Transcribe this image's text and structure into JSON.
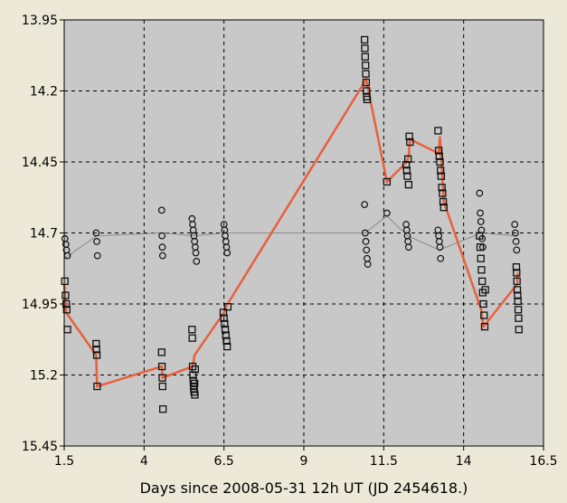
{
  "chart_data": {
    "type": "scatter",
    "title": "",
    "xlabel": "Days since 2008-05-31 12h UT (JD 2454618.)",
    "ylabel": "",
    "xlim": [
      1.5,
      16.5
    ],
    "ylim": [
      15.45,
      13.95
    ],
    "y_inverted": true,
    "grid": true,
    "x_ticks": [
      "1.5",
      "4",
      "6.5",
      "9",
      "11.5",
      "14",
      "16.5"
    ],
    "y_ticks": [
      "13.95",
      "14.2",
      "14.45",
      "14.7",
      "14.95",
      "15.2",
      "15.45"
    ],
    "colors": {
      "plot_background": "#c8c8c8",
      "window_background": "#ece9d8",
      "variable_line": "#e8603c",
      "comparison_line": "#8a8a8a",
      "marker_edge": "#111111"
    },
    "series": [
      {
        "marker": "square",
        "line": "#e8603c",
        "x": [
          1.52,
          1.54,
          1.56,
          1.58,
          1.6,
          2.5,
          2.51,
          2.52,
          2.53,
          4.55,
          4.56,
          4.57,
          4.58,
          4.59,
          5.5,
          5.51,
          5.52,
          5.53,
          5.54,
          5.55,
          5.56,
          5.57,
          5.58,
          5.59,
          5.6,
          6.48,
          6.5,
          6.52,
          6.54,
          6.56,
          6.58,
          6.6,
          6.62,
          10.9,
          10.91,
          10.92,
          10.93,
          10.94,
          10.95,
          10.96,
          10.97,
          10.98,
          11.6,
          12.2,
          12.22,
          12.24,
          12.26,
          12.28,
          12.3,
          12.32,
          13.2,
          13.22,
          13.24,
          13.26,
          13.28,
          13.3,
          13.32,
          13.34,
          13.36,
          13.38,
          14.5,
          14.52,
          14.54,
          14.56,
          14.58,
          14.6,
          14.62,
          14.64,
          14.66,
          14.68,
          15.65,
          15.66,
          15.67,
          15.68,
          15.69,
          15.7,
          15.71,
          15.72,
          15.73
        ],
        "y": [
          14.87,
          14.92,
          14.95,
          14.97,
          15.04,
          15.09,
          15.11,
          15.13,
          15.24,
          15.12,
          15.17,
          15.21,
          15.24,
          15.32,
          15.04,
          15.07,
          15.17,
          15.2,
          15.22,
          15.24,
          15.25,
          15.26,
          15.23,
          15.27,
          15.18,
          14.98,
          15.0,
          15.02,
          15.04,
          15.06,
          15.08,
          15.1,
          14.96,
          14.02,
          14.05,
          14.08,
          14.11,
          14.14,
          14.17,
          14.2,
          14.22,
          14.23,
          14.52,
          14.46,
          14.48,
          14.5,
          14.44,
          14.53,
          14.36,
          14.38,
          14.34,
          14.41,
          14.43,
          14.45,
          14.48,
          14.5,
          14.54,
          14.56,
          14.59,
          14.61,
          14.71,
          14.75,
          14.79,
          14.83,
          14.87,
          14.91,
          14.95,
          14.99,
          15.03,
          14.9,
          14.82,
          14.84,
          14.87,
          14.9,
          14.92,
          14.94,
          14.97,
          15.0,
          15.04
        ],
        "line_x": [
          1.5,
          1.56,
          2.5,
          2.53,
          4.56,
          4.58,
          5.52,
          5.55,
          5.58,
          6.5,
          6.56,
          10.95,
          11.6,
          12.22,
          12.28,
          12.32,
          13.22,
          13.26,
          13.38,
          14.55,
          14.62,
          15.68,
          15.7
        ],
        "line_y": [
          14.88,
          14.98,
          15.13,
          15.24,
          15.17,
          15.21,
          15.17,
          15.15,
          15.13,
          14.98,
          14.96,
          14.16,
          14.52,
          14.45,
          14.43,
          14.37,
          14.42,
          14.36,
          14.59,
          14.97,
          15.03,
          14.88,
          14.84
        ]
      },
      {
        "marker": "circle",
        "line": "#8a8a8a",
        "x": [
          1.52,
          1.55,
          1.57,
          1.6,
          2.5,
          2.52,
          2.54,
          4.55,
          4.56,
          4.57,
          4.58,
          5.5,
          5.52,
          5.54,
          5.56,
          5.58,
          5.6,
          5.62,
          5.64,
          6.5,
          6.52,
          6.54,
          6.56,
          6.58,
          6.6,
          10.9,
          10.92,
          10.94,
          10.96,
          10.98,
          11.0,
          11.6,
          12.2,
          12.22,
          12.24,
          12.26,
          12.28,
          13.2,
          13.22,
          13.24,
          13.26,
          13.28,
          14.5,
          14.52,
          14.54,
          14.56,
          14.58,
          14.6,
          15.6,
          15.62,
          15.64,
          15.66
        ],
        "y": [
          14.72,
          14.74,
          14.76,
          14.78,
          14.7,
          14.73,
          14.78,
          14.62,
          14.71,
          14.75,
          14.78,
          14.65,
          14.67,
          14.69,
          14.71,
          14.73,
          14.75,
          14.77,
          14.8,
          14.67,
          14.69,
          14.71,
          14.73,
          14.75,
          14.77,
          14.6,
          14.7,
          14.73,
          14.76,
          14.79,
          14.81,
          14.63,
          14.67,
          14.69,
          14.71,
          14.73,
          14.75,
          14.69,
          14.71,
          14.73,
          14.75,
          14.79,
          14.56,
          14.63,
          14.66,
          14.69,
          14.72,
          14.75,
          14.67,
          14.7,
          14.73,
          14.76
        ],
        "line_x": [
          1.5,
          2.52,
          4.56,
          5.56,
          6.54,
          10.92,
          11.6,
          12.24,
          13.24,
          14.55,
          15.63
        ],
        "line_y": [
          14.79,
          14.71,
          14.7,
          14.71,
          14.7,
          14.7,
          14.64,
          14.71,
          14.76,
          14.7,
          14.71
        ]
      }
    ]
  }
}
